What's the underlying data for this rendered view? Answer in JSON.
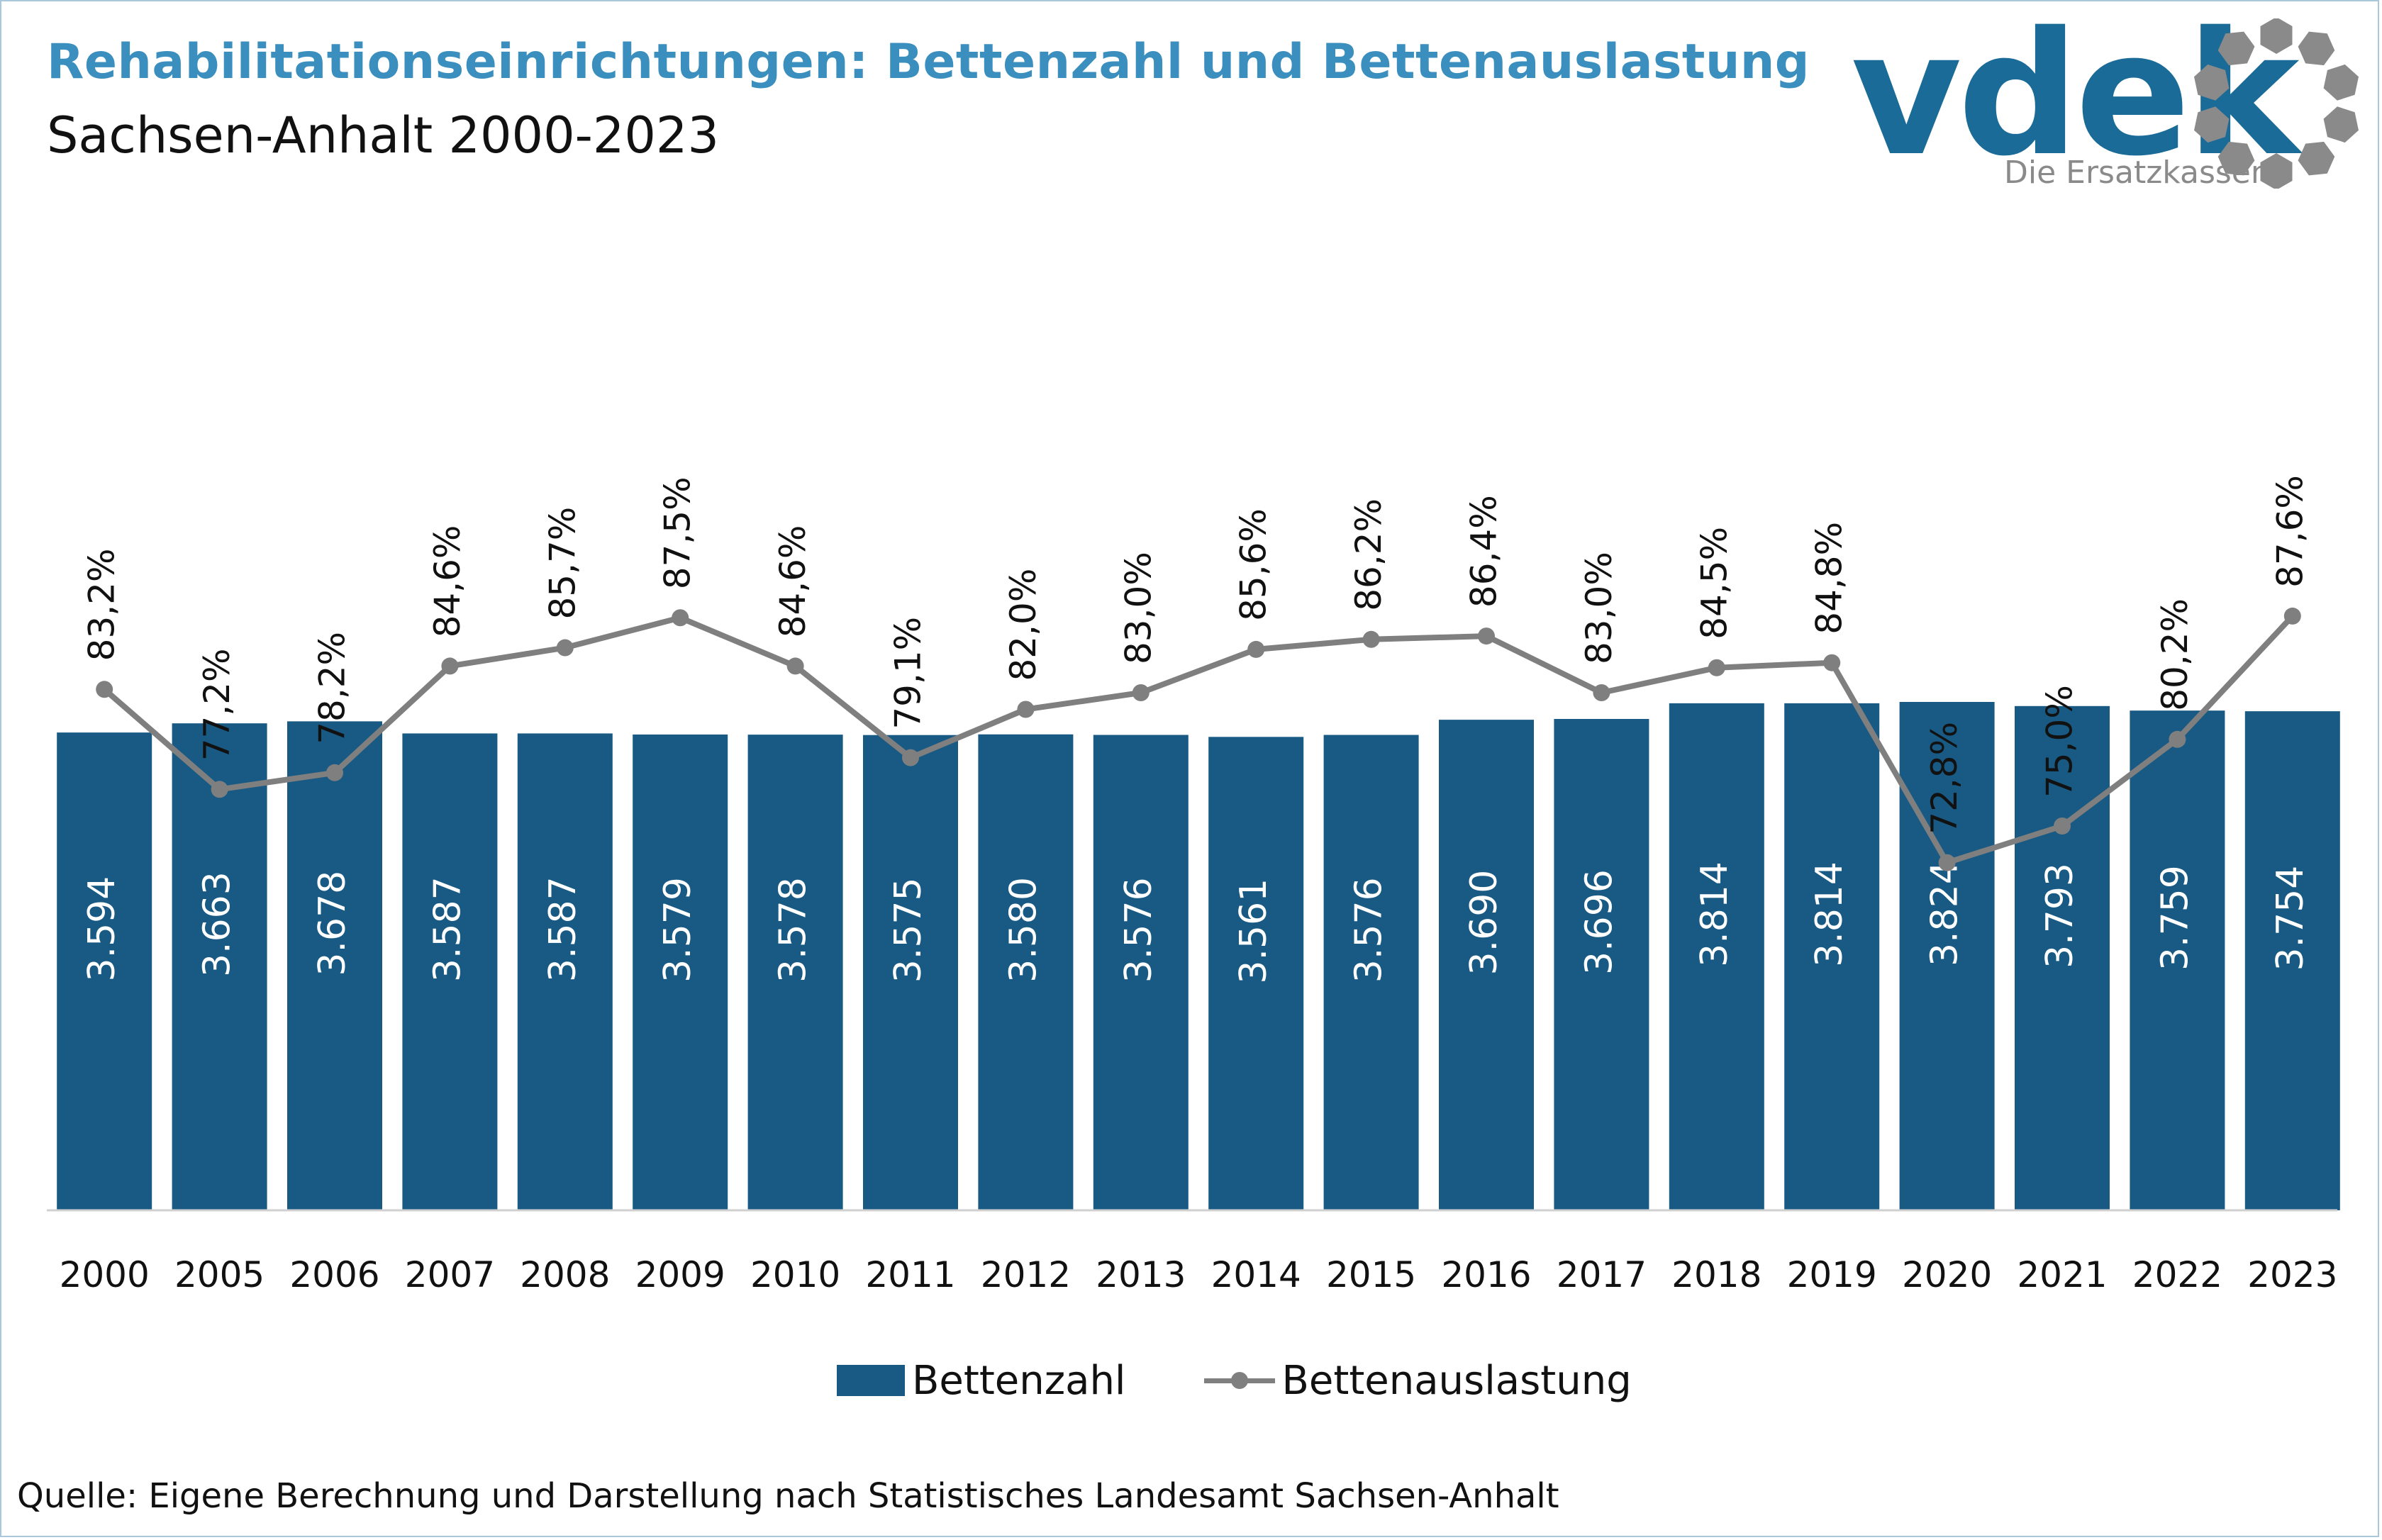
{
  "title": "Rehabilitationseinrichtungen: Bettenzahl und Bettenauslastung",
  "subtitle": "Sachsen-Anhalt 2000-2023",
  "logo": {
    "wordmark": "vdek",
    "tagline": "Die Ersatzkassen",
    "colors": {
      "word": "#1a6b97",
      "tag": "#8a8a8a",
      "ring": "#8a8a8a"
    }
  },
  "colors": {
    "bar": "#185a83",
    "line": "#7f7f7f",
    "title": "#3b8fbe"
  },
  "chart_data": {
    "type": "bar",
    "categories": [
      "2000",
      "2005",
      "2006",
      "2007",
      "2008",
      "2009",
      "2010",
      "2011",
      "2012",
      "2013",
      "2014",
      "2015",
      "2016",
      "2017",
      "2018",
      "2019",
      "2020",
      "2021",
      "2022",
      "2023"
    ],
    "series": [
      {
        "name": "Bettenzahl",
        "type": "bar",
        "values": [
          3594,
          3663,
          3678,
          3587,
          3587,
          3579,
          3578,
          3575,
          3580,
          3576,
          3561,
          3576,
          3690,
          3696,
          3814,
          3814,
          3824,
          3793,
          3759,
          3754
        ],
        "labels": [
          "3.594",
          "3.663",
          "3.678",
          "3.587",
          "3.587",
          "3.579",
          "3.578",
          "3.575",
          "3.580",
          "3.576",
          "3.561",
          "3.576",
          "3.690",
          "3.696",
          "3.814",
          "3.814",
          "3.824",
          "3.793",
          "3.759",
          "3.754"
        ]
      },
      {
        "name": "Bettenauslastung",
        "type": "line",
        "values": [
          83.2,
          77.2,
          78.2,
          84.6,
          85.7,
          87.5,
          84.6,
          79.1,
          82.0,
          83.0,
          85.6,
          86.2,
          86.4,
          83.0,
          84.5,
          84.8,
          72.8,
          75.0,
          80.2,
          87.6
        ],
        "labels": [
          "83,2%",
          "77,2%",
          "78,2%",
          "84,6%",
          "85,7%",
          "87,5%",
          "84,6%",
          "79,1%",
          "82,0%",
          "83,0%",
          "85,6%",
          "86,2%",
          "86,4%",
          "83,0%",
          "84,5%",
          "84,8%",
          "72,8%",
          "75,0%",
          "80,2%",
          "87,6%"
        ]
      }
    ],
    "legend": "bottom-center",
    "grid": false
  },
  "source": "Quelle: Eigene Berechnung und Darstellung nach Statistisches Landesamt Sachsen-Anhalt"
}
